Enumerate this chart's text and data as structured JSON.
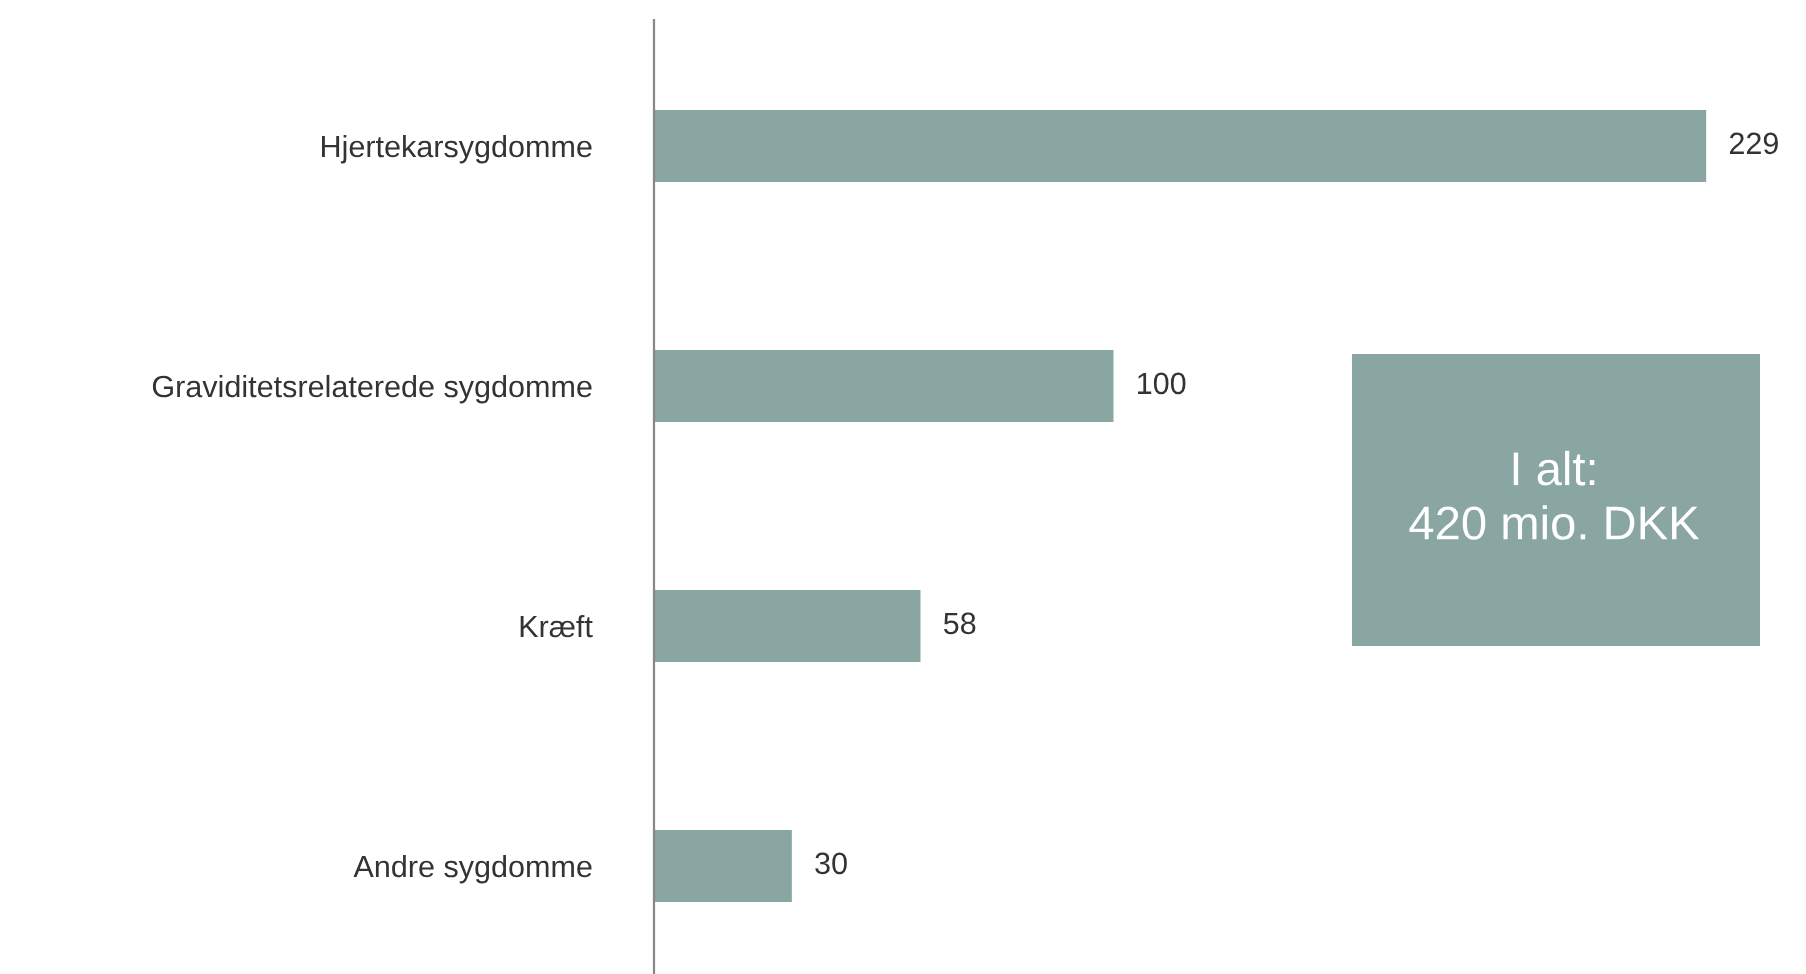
{
  "chart_data": {
    "type": "bar",
    "orientation": "horizontal",
    "categories": [
      "Hjertekarsygdomme",
      "Graviditetsrelaterede sygdomme",
      "Kræft",
      "Andre sygdomme"
    ],
    "values": [
      229,
      100,
      58,
      30
    ],
    "color": "#8aa6a3",
    "data_labels": true,
    "grid": false,
    "annotations": [
      "I alt:\n420 mio. DKK"
    ]
  }
}
